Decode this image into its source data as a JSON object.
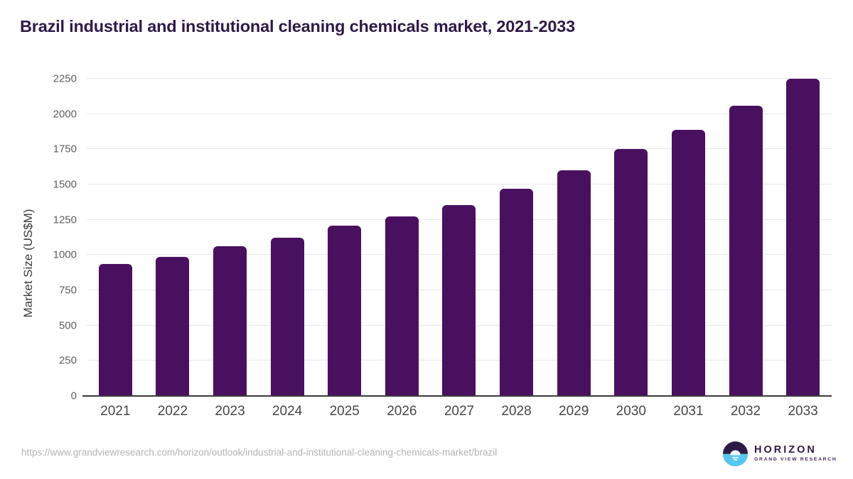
{
  "title": "Brazil industrial and institutional cleaning chemicals market, 2021-2033",
  "chart_data": {
    "type": "bar",
    "categories": [
      "2021",
      "2022",
      "2023",
      "2024",
      "2025",
      "2026",
      "2027",
      "2028",
      "2029",
      "2030",
      "2031",
      "2032",
      "2033"
    ],
    "values": [
      935,
      985,
      1060,
      1125,
      1210,
      1275,
      1355,
      1470,
      1600,
      1750,
      1890,
      2060,
      2248
    ],
    "title": "Brazil industrial and institutional cleaning chemicals market, 2021-2033",
    "xlabel": "",
    "ylabel": "Market Size (US$M)",
    "ylim": [
      0,
      2250
    ],
    "yticks": [
      0,
      250,
      500,
      750,
      1000,
      1250,
      1500,
      1750,
      2000,
      2250
    ],
    "grid": "horizontal",
    "legend": "none",
    "bar_color": "#4a1060"
  },
  "colors": {
    "bar": "#4a1060",
    "title": "#2e1a47",
    "gridline": "#e9e9e9",
    "axis": "#3b3b3b",
    "y_tick_label": "#5f5f5f",
    "x_label": "#474747",
    "url_text": "#b4b4b4",
    "logo_purple": "#2e1a47",
    "logo_blue": "#56c6f2"
  },
  "footer": {
    "source_url": "https://www.grandviewresearch.com/horizon/outlook/industrial-and-institutional-cleaning-chemicals-market/brazil",
    "logo": {
      "name": "HORIZON",
      "subtitle": "GRAND VIEW RESEARCH"
    }
  }
}
